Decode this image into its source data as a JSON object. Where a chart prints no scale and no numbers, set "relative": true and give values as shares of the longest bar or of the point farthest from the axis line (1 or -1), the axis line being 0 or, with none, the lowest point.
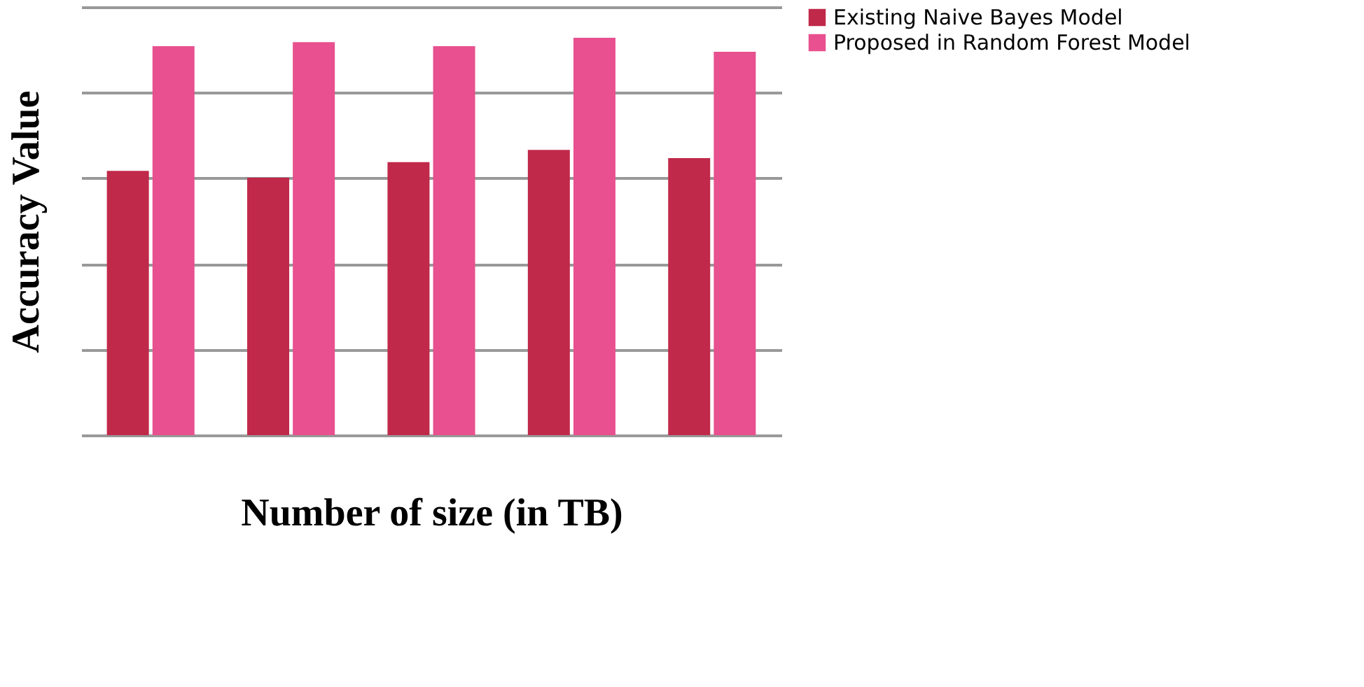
{
  "chart_data": {
    "type": "bar",
    "relative": true,
    "xlabel": "Number of size (in TB)",
    "ylabel": "Accuracy Value",
    "categories": [
      null,
      null,
      null,
      null,
      null
    ],
    "series": [
      {
        "name": "Existing Naive Bayes Model",
        "color": "#c0294a",
        "values": [
          0.665,
          0.648,
          0.687,
          0.718,
          0.697
        ]
      },
      {
        "name": "Proposed in Random Forest Model",
        "color": "#e8508f",
        "values": [
          0.979,
          0.989,
          0.979,
          1.0,
          0.965
        ]
      }
    ],
    "grid": "y",
    "legend": "right"
  }
}
